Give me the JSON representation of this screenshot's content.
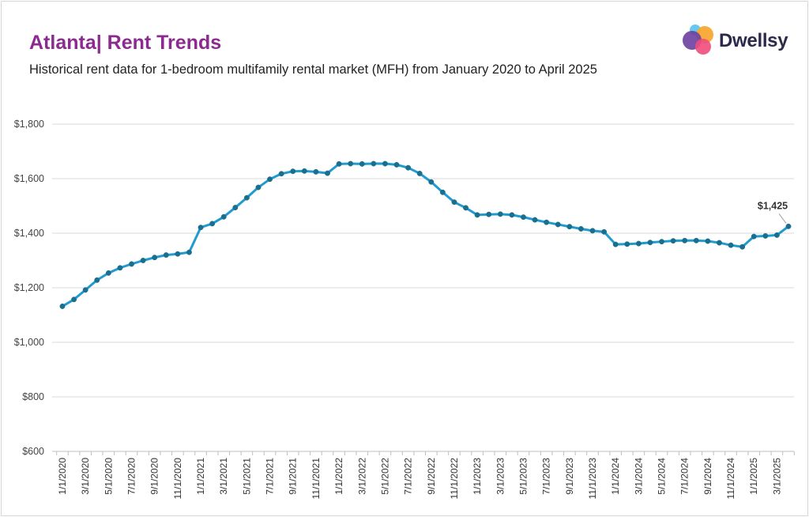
{
  "title": "Atlanta| Rent Trends",
  "subtitle": "Historical rent data for 1-bedroom multifamily rental market (MFH) from January 2020 to April 2025",
  "brand": {
    "name": "Dwellsy",
    "colors": [
      "#5bc6f0",
      "#f7a833",
      "#6b3fa0",
      "#ee4d7c"
    ]
  },
  "chart_data": {
    "type": "line",
    "title": "Atlanta| Rent Trends",
    "xlabel": "",
    "ylabel": "",
    "ylim": [
      600,
      1800
    ],
    "y_ticks": [
      "$600",
      "$800",
      "$1,000",
      "$1,200",
      "$1,400",
      "$1,600",
      "$1,800"
    ],
    "y_tick_values": [
      600,
      800,
      1000,
      1200,
      1400,
      1600,
      1800
    ],
    "x_tick_labels": [
      "1/1/2020",
      "3/1/2020",
      "5/1/2020",
      "7/1/2020",
      "9/1/2020",
      "11/1/2020",
      "1/1/2021",
      "3/1/2021",
      "5/1/2021",
      "7/1/2021",
      "9/1/2021",
      "11/1/2021",
      "1/1/2022",
      "3/1/2022",
      "5/1/2022",
      "7/1/2022",
      "9/1/2022",
      "11/1/2022",
      "1/1/2023",
      "3/1/2023",
      "5/1/2023",
      "7/1/2023",
      "9/1/2023",
      "11/1/2023",
      "1/1/2024",
      "3/1/2024",
      "5/1/2024",
      "7/1/2024",
      "9/1/2024",
      "11/1/2024",
      "1/1/2025",
      "3/1/2025"
    ],
    "grid": "horizontal",
    "line_color": "#1f9bd1",
    "marker_color": "#1a6f8f",
    "end_label": "$1,425",
    "series": [
      {
        "x": [
          "2020-01",
          "2020-02",
          "2020-03",
          "2020-04",
          "2020-05",
          "2020-06",
          "2020-07",
          "2020-08",
          "2020-09",
          "2020-10",
          "2020-11",
          "2020-12",
          "2021-01",
          "2021-02",
          "2021-03",
          "2021-04",
          "2021-05",
          "2021-06",
          "2021-07",
          "2021-08",
          "2021-09",
          "2021-10",
          "2021-11",
          "2021-12",
          "2022-01",
          "2022-02",
          "2022-03",
          "2022-04",
          "2022-05",
          "2022-06",
          "2022-07",
          "2022-08",
          "2022-09",
          "2022-10",
          "2022-11",
          "2022-12",
          "2023-01",
          "2023-02",
          "2023-03",
          "2023-04",
          "2023-05",
          "2023-06",
          "2023-07",
          "2023-08",
          "2023-09",
          "2023-10",
          "2023-11",
          "2023-12",
          "2024-01",
          "2024-02",
          "2024-03",
          "2024-04",
          "2024-05",
          "2024-06",
          "2024-07",
          "2024-08",
          "2024-09",
          "2024-10",
          "2024-11",
          "2024-12",
          "2025-01",
          "2025-02",
          "2025-03",
          "2025-04"
        ],
        "values": [
          1132,
          1157,
          1192,
          1228,
          1254,
          1273,
          1287,
          1300,
          1311,
          1320,
          1324,
          1330,
          1421,
          1435,
          1460,
          1494,
          1530,
          1568,
          1598,
          1618,
          1627,
          1628,
          1625,
          1620,
          1654,
          1655,
          1654,
          1655,
          1655,
          1651,
          1640,
          1619,
          1588,
          1550,
          1514,
          1493,
          1467,
          1469,
          1470,
          1467,
          1459,
          1449,
          1440,
          1432,
          1424,
          1416,
          1409,
          1405,
          1359,
          1360,
          1362,
          1366,
          1369,
          1372,
          1373,
          1373,
          1371,
          1365,
          1356,
          1350,
          1388,
          1390,
          1393,
          1425
        ]
      }
    ]
  }
}
